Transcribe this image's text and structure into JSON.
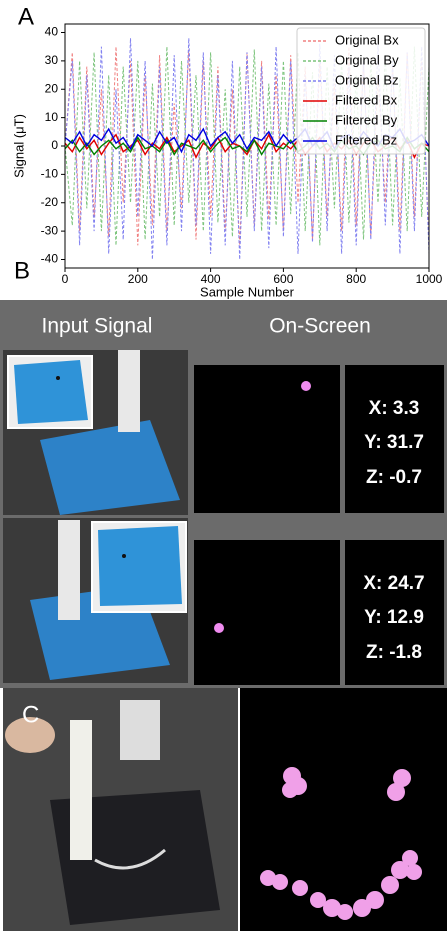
{
  "chart_data": {
    "type": "line",
    "panel_label": "A",
    "xlabel": "Sample Number",
    "ylabel": "Signal (μT)",
    "x": [
      0,
      20,
      40,
      60,
      80,
      100,
      120,
      140,
      160,
      180,
      200,
      220,
      240,
      260,
      280,
      300,
      320,
      340,
      360,
      380,
      400,
      420,
      440,
      460,
      480,
      500,
      520,
      540,
      560,
      580,
      600,
      620,
      640,
      660,
      680,
      700,
      720,
      740,
      760,
      780,
      800,
      820,
      840,
      860,
      880,
      900,
      920,
      940,
      960,
      980,
      1000
    ],
    "series": [
      {
        "name": "Original Bx",
        "color": "#f08080",
        "style": "dashed",
        "values": [
          0,
          33,
          -30,
          28,
          -25,
          20,
          -32,
          35,
          -20,
          30,
          -35,
          25,
          -28,
          32,
          -30,
          15,
          -22,
          34,
          -33,
          30,
          -25,
          28,
          -30,
          20,
          -35,
          33,
          -28,
          30,
          -26,
          25,
          -30,
          32,
          -20,
          28,
          -33,
          30,
          -25,
          22,
          -30,
          35,
          -28,
          30,
          -32,
          25,
          -20,
          28,
          -30,
          33,
          -25,
          30,
          -35
        ]
      },
      {
        "name": "Original By",
        "color": "#7cc47c",
        "style": "dashed",
        "values": [
          0,
          -28,
          30,
          -22,
          33,
          -30,
          25,
          -35,
          28,
          -20,
          30,
          -33,
          22,
          -25,
          35,
          -28,
          30,
          -20,
          25,
          -30,
          33,
          -27,
          20,
          -32,
          28,
          -25,
          34,
          -30,
          22,
          -28,
          30,
          -24,
          33,
          -30,
          26,
          -35,
          28,
          -22,
          30,
          -27,
          25,
          -33,
          30,
          -20,
          32,
          -28,
          24,
          -30,
          35,
          -25,
          28
        ]
      },
      {
        "name": "Original Bz",
        "color": "#8080f0",
        "style": "dashed",
        "values": [
          0,
          30,
          -35,
          25,
          -30,
          35,
          -38,
          20,
          -33,
          38,
          -25,
          30,
          -40,
          28,
          -35,
          32,
          -30,
          38,
          -28,
          33,
          -38,
          25,
          -35,
          30,
          -40,
          33,
          -30,
          28,
          -36,
          35,
          -32,
          30,
          -38,
          25,
          -34,
          36,
          -30,
          32,
          -38,
          28,
          -35,
          30,
          -33,
          36,
          -28,
          30,
          -38,
          33,
          -30,
          35,
          -38
        ]
      },
      {
        "name": "Filtered Bx",
        "color": "#e00000",
        "style": "solid",
        "values": [
          1,
          -2,
          3,
          -1,
          2,
          -3,
          1,
          4,
          -2,
          0,
          2,
          -3,
          1,
          -1,
          3,
          -2,
          0,
          2,
          -4,
          1,
          -1,
          3,
          -2,
          1,
          0,
          -3,
          2,
          -1,
          4,
          -2,
          1,
          -1,
          2,
          -3,
          0,
          3,
          -2,
          1,
          -1,
          2,
          -3,
          1,
          2,
          -2,
          0,
          3,
          -1,
          2,
          -4,
          1,
          0
        ]
      },
      {
        "name": "Filtered By",
        "color": "#008000",
        "style": "solid",
        "values": [
          -1,
          2,
          -2,
          1,
          -3,
          0,
          2,
          -1,
          1,
          -2,
          3,
          -1,
          0,
          -2,
          2,
          -3,
          1,
          0,
          -1,
          2,
          -2,
          1,
          3,
          -1,
          0,
          -2,
          2,
          -3,
          1,
          0,
          -1,
          2,
          -2,
          0,
          3,
          -1,
          1,
          -2,
          2,
          -1,
          0,
          -3,
          1,
          2,
          -1,
          0,
          -2,
          3,
          -1,
          1,
          -2
        ]
      },
      {
        "name": "Filtered Bz",
        "color": "#0000e0",
        "style": "solid",
        "values": [
          3,
          1,
          5,
          0,
          4,
          2,
          6,
          1,
          3,
          -1,
          4,
          2,
          0,
          5,
          1,
          3,
          -2,
          4,
          2,
          6,
          0,
          3,
          5,
          1,
          4,
          -1,
          3,
          2,
          5,
          0,
          4,
          1,
          3,
          6,
          0,
          2,
          5,
          -1,
          3,
          4,
          1,
          5,
          2,
          0,
          4,
          3,
          6,
          1,
          2,
          4,
          0
        ]
      }
    ],
    "xlim": [
      0,
      1000
    ],
    "ylim": [
      -43,
      43
    ],
    "xticks": [
      0,
      200,
      400,
      600,
      800,
      1000
    ],
    "yticks": [
      -40,
      -30,
      -20,
      -10,
      0,
      10,
      20,
      30,
      40
    ],
    "legend": "upper right"
  },
  "panel_b": {
    "label": "B",
    "headers": [
      "Input Signal",
      "On-Screen"
    ],
    "readouts": [
      [
        "X: 3.3",
        "Y: 31.7",
        "Z: -0.7"
      ],
      [
        "X: 24.7",
        "Y: 12.9",
        "Z: -1.8"
      ]
    ]
  },
  "panel_c": {
    "label": "C"
  }
}
